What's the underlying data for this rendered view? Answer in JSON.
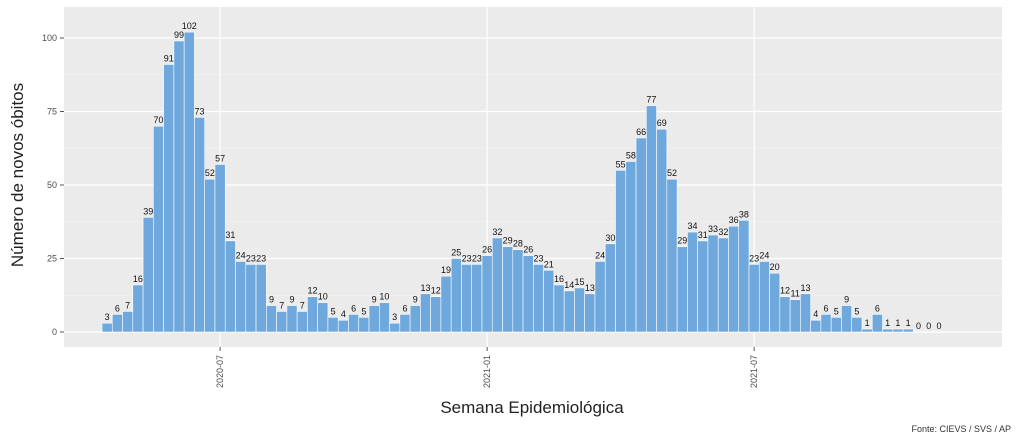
{
  "chart_data": {
    "type": "bar",
    "title": "",
    "xlabel": "Semana Epidemiológica",
    "ylabel": "Número de novos óbitos",
    "source": "Fonte: CIEVS / SVS / AP",
    "ylim": [
      0,
      110
    ],
    "yticks": [
      0,
      25,
      50,
      75,
      100
    ],
    "xtick_labels": [
      {
        "label": "2020-07",
        "week_index": 11
      },
      {
        "label": "2021-01",
        "week_index": 37
      },
      {
        "label": "2021-07",
        "week_index": 63
      }
    ],
    "grid": true,
    "bar_color": "#6fa8dc",
    "panel_background": "#ebebeb",
    "values": [
      3,
      6,
      7,
      16,
      39,
      70,
      91,
      99,
      102,
      73,
      52,
      57,
      31,
      24,
      23,
      23,
      9,
      7,
      9,
      7,
      12,
      10,
      5,
      4,
      6,
      5,
      9,
      10,
      3,
      6,
      9,
      13,
      12,
      19,
      25,
      23,
      23,
      26,
      32,
      29,
      28,
      26,
      23,
      21,
      16,
      14,
      15,
      13,
      24,
      30,
      55,
      58,
      66,
      77,
      69,
      52,
      29,
      34,
      31,
      33,
      32,
      36,
      38,
      23,
      24,
      20,
      12,
      11,
      13,
      4,
      6,
      5,
      9,
      5,
      1,
      6,
      1,
      1,
      1,
      0,
      0,
      0
    ]
  }
}
